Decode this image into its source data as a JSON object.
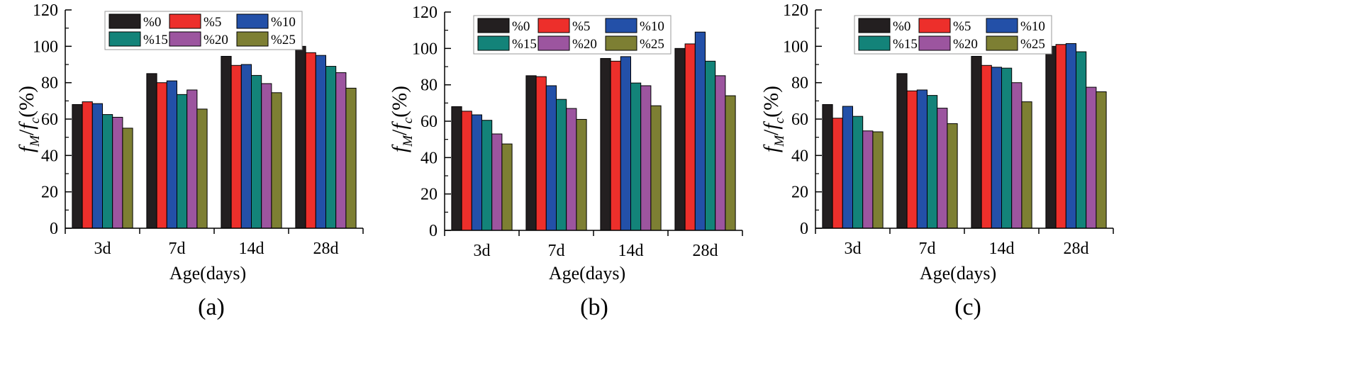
{
  "figure": {
    "panel_labels": [
      "(a)",
      "(b)",
      "(c)"
    ]
  },
  "chart_data": [
    {
      "type": "bar",
      "panel": "(a)",
      "categories": [
        "3d",
        "7d",
        "14d",
        "28d"
      ],
      "xlabel": "Age(days)",
      "ylabel": {
        "f1": "f",
        "sub1": "M",
        "slash": "/",
        "f2": "f",
        "sub2": "c",
        "tail": "(%)"
      },
      "ylim": [
        0,
        120
      ],
      "yticks": [
        "0",
        "20",
        "40",
        "60",
        "80",
        "100",
        "120"
      ],
      "legend_position": "top",
      "series": [
        {
          "name": "%0",
          "color": "#231f20",
          "values": [
            68,
            85,
            94.5,
            100
          ]
        },
        {
          "name": "%5",
          "color": "#ed2f2b",
          "values": [
            69.5,
            80,
            89.5,
            96.5
          ]
        },
        {
          "name": "%10",
          "color": "#2350a8",
          "values": [
            68.5,
            81,
            90,
            95
          ]
        },
        {
          "name": "%15",
          "color": "#138379",
          "values": [
            62.5,
            73.5,
            84,
            89
          ]
        },
        {
          "name": "%20",
          "color": "#9c559f",
          "values": [
            61,
            76,
            79.5,
            85.5
          ]
        },
        {
          "name": "%25",
          "color": "#7d7f33",
          "values": [
            55,
            65.5,
            74.5,
            77
          ]
        }
      ]
    },
    {
      "type": "bar",
      "panel": "(b)",
      "categories": [
        "3d",
        "7d",
        "14d",
        "28d"
      ],
      "xlabel": "Age(days)",
      "ylabel": {
        "f1": "f",
        "sub1": "M",
        "slash": "/",
        "f2": "f",
        "sub2": "c",
        "tail": "(%)"
      },
      "ylim": [
        0,
        120
      ],
      "yticks": [
        "0",
        "20",
        "40",
        "60",
        "80",
        "100",
        "120"
      ],
      "legend_position": "top",
      "series": [
        {
          "name": "%0",
          "color": "#231f20",
          "values": [
            68,
            85,
            94.5,
            100
          ]
        },
        {
          "name": "%5",
          "color": "#ed2f2b",
          "values": [
            65.5,
            84.5,
            93,
            102.5
          ]
        },
        {
          "name": "%10",
          "color": "#2350a8",
          "values": [
            63.5,
            79.5,
            95.5,
            109
          ]
        },
        {
          "name": "%15",
          "color": "#138379",
          "values": [
            60.5,
            72,
            81,
            93
          ]
        },
        {
          "name": "%20",
          "color": "#9c559f",
          "values": [
            53,
            67,
            79.5,
            85
          ]
        },
        {
          "name": "%25",
          "color": "#7d7f33",
          "values": [
            47.5,
            61,
            68.5,
            74
          ]
        }
      ]
    },
    {
      "type": "bar",
      "panel": "(c)",
      "categories": [
        "3d",
        "7d",
        "14d",
        "28d"
      ],
      "xlabel": "Age(days)",
      "ylabel": {
        "f1": "f",
        "sub1": "M",
        "slash": "/",
        "f2": "f",
        "sub2": "c",
        "tail": "(%)"
      },
      "ylim": [
        0,
        120
      ],
      "yticks": [
        "0",
        "20",
        "40",
        "60",
        "80",
        "100",
        "120"
      ],
      "legend_position": "top",
      "series": [
        {
          "name": "%0",
          "color": "#231f20",
          "values": [
            68,
            85,
            94.5,
            100
          ]
        },
        {
          "name": "%5",
          "color": "#ed2f2b",
          "values": [
            60.5,
            75.5,
            89.5,
            101
          ]
        },
        {
          "name": "%10",
          "color": "#2350a8",
          "values": [
            67,
            76,
            88.5,
            101.5
          ]
        },
        {
          "name": "%15",
          "color": "#138379",
          "values": [
            61.5,
            73,
            88,
            97
          ]
        },
        {
          "name": "%20",
          "color": "#9c559f",
          "values": [
            53.5,
            66,
            80,
            77.5
          ]
        },
        {
          "name": "%25",
          "color": "#7d7f33",
          "values": [
            53,
            57.5,
            69.5,
            75
          ]
        }
      ]
    }
  ]
}
